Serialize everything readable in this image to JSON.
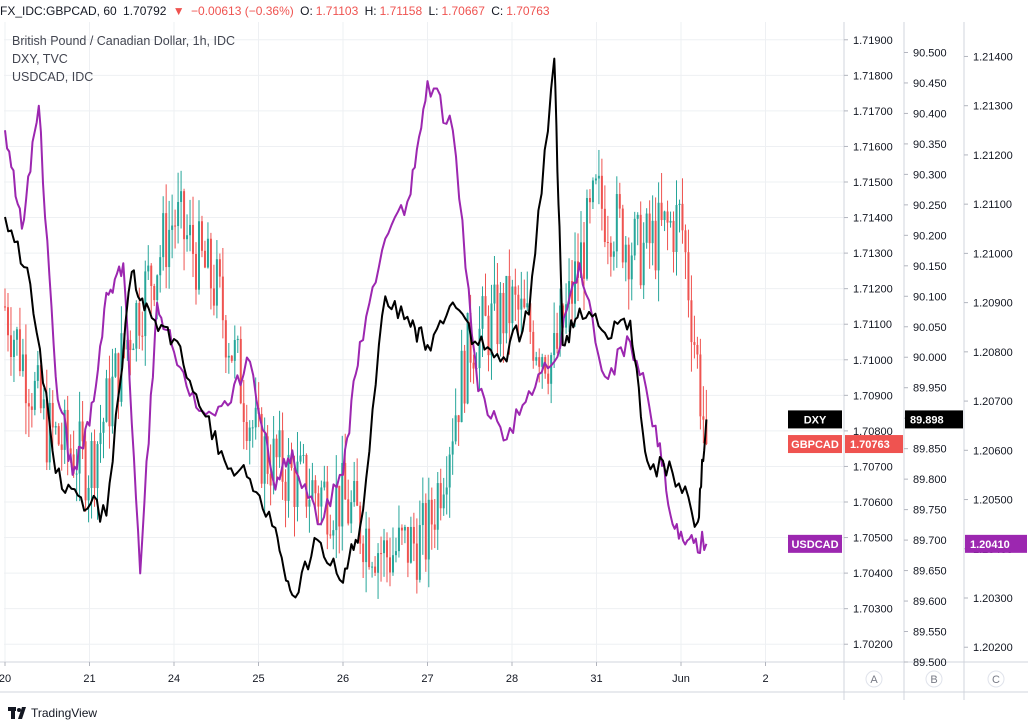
{
  "header": {
    "symbol": "FX_IDC:GBPCAD, 60",
    "last": "1.70792",
    "change": "−0.00613 (−0.36%)",
    "o_label": "O:",
    "o_value": "1.71103",
    "h_label": "H:",
    "h_value": "1.71158",
    "l_label": "L:",
    "l_value": "1.70667",
    "c_label": "C:",
    "c_value": "1.70763"
  },
  "legend": [
    "British Pound / Canadian Dollar, 1h, IDC",
    "DXY, TVC",
    "USDCAD, IDC"
  ],
  "footer": {
    "brand": "TradingView"
  },
  "axis_buttons": [
    "A",
    "B",
    "C"
  ],
  "colors": {
    "up": "#26a69a",
    "down": "#ef5350",
    "dxy": "#000000",
    "usdcad": "#9c27b0",
    "grid": "#eef0f3"
  },
  "chart_data": {
    "type": "line",
    "x_ticks": [
      "20",
      "21",
      "24",
      "25",
      "26",
      "27",
      "28",
      "31",
      "Jun",
      "2"
    ],
    "axes": {
      "A": {
        "series": "GBPCAD",
        "range": [
          1.7015,
          1.7195
        ],
        "ticks": [
          "1.71900",
          "1.71800",
          "1.71700",
          "1.71600",
          "1.71500",
          "1.71400",
          "1.71300",
          "1.71200",
          "1.71100",
          "1.71000",
          "1.70900",
          "1.70800",
          "1.70700",
          "1.70600",
          "1.70500",
          "1.70400",
          "1.70300",
          "1.70200"
        ]
      },
      "B": {
        "series": "DXY",
        "range": [
          89.5,
          90.55
        ],
        "ticks": [
          "90.500",
          "90.450",
          "90.400",
          "90.350",
          "90.300",
          "90.250",
          "90.200",
          "90.150",
          "90.100",
          "90.050",
          "90.000",
          "89.950",
          "89.900",
          "89.850",
          "89.800",
          "89.750",
          "89.700",
          "89.650",
          "89.600",
          "89.550",
          "89.500"
        ]
      },
      "C": {
        "series": "USDCAD",
        "range": [
          1.2017,
          1.2147
        ],
        "ticks": [
          "1.21400",
          "1.21300",
          "1.21200",
          "1.21100",
          "1.21000",
          "1.20900",
          "1.20800",
          "1.20700",
          "1.20600",
          "1.20500",
          "1.20400",
          "1.20300",
          "1.20200"
        ]
      }
    },
    "series": [
      {
        "name": "GBPCAD",
        "axis": "A",
        "style": "candles",
        "last_label": "1.70763",
        "x": [
          0.0,
          0.5,
          1.0,
          1.5,
          2.0,
          2.5,
          3.0,
          3.5,
          4.0,
          4.5,
          5.0,
          5.5,
          6.0,
          6.5,
          7.0,
          7.5,
          8.0,
          8.3
        ],
        "values": [
          1.7115,
          1.708,
          1.707,
          1.711,
          1.714,
          1.712,
          1.7075,
          1.7065,
          1.706,
          1.7045,
          1.705,
          1.7105,
          1.7115,
          1.71,
          1.7145,
          1.713,
          1.714,
          1.70763
        ]
      },
      {
        "name": "DXY",
        "axis": "B",
        "style": "line",
        "last_label": "89.898",
        "x": [
          0.0,
          0.3,
          0.6,
          0.9,
          1.2,
          1.5,
          1.7,
          2.0,
          2.3,
          2.6,
          2.9,
          3.2,
          3.4,
          3.7,
          4.0,
          4.2,
          4.5,
          4.8,
          5.0,
          5.3,
          5.6,
          5.9,
          6.2,
          6.5,
          6.6,
          6.8,
          7.1,
          7.4,
          7.6,
          7.9,
          8.2,
          8.3
        ],
        "values": [
          90.23,
          90.12,
          89.81,
          89.77,
          89.74,
          90.14,
          90.08,
          90.03,
          89.92,
          89.83,
          89.8,
          89.72,
          89.61,
          89.7,
          89.63,
          89.72,
          90.1,
          90.05,
          90.02,
          90.09,
          90.02,
          90.0,
          90.07,
          90.49,
          90.02,
          90.08,
          90.04,
          90.06,
          89.83,
          89.81,
          89.73,
          89.898
        ]
      },
      {
        "name": "USDCAD",
        "axis": "C",
        "style": "line",
        "last_label": "1.20410",
        "x": [
          0.0,
          0.2,
          0.4,
          0.6,
          0.8,
          1.0,
          1.2,
          1.4,
          1.6,
          1.8,
          2.0,
          2.3,
          2.6,
          2.9,
          3.2,
          3.4,
          3.7,
          4.0,
          4.2,
          4.5,
          4.8,
          5.0,
          5.3,
          5.6,
          5.9,
          6.2,
          6.5,
          6.8,
          7.1,
          7.4,
          7.7,
          7.9,
          8.1,
          8.3
        ],
        "values": [
          1.2125,
          1.2105,
          1.213,
          1.2075,
          1.2055,
          1.2065,
          1.2092,
          1.2098,
          1.2035,
          1.209,
          1.208,
          1.2068,
          1.207,
          1.2078,
          1.2052,
          1.206,
          1.2045,
          1.2055,
          1.2082,
          1.2103,
          1.2112,
          1.2135,
          1.2125,
          1.2072,
          1.2062,
          1.2072,
          1.2078,
          1.2098,
          1.2075,
          1.2082,
          1.2065,
          1.2045,
          1.2042,
          1.2041
        ]
      }
    ]
  }
}
